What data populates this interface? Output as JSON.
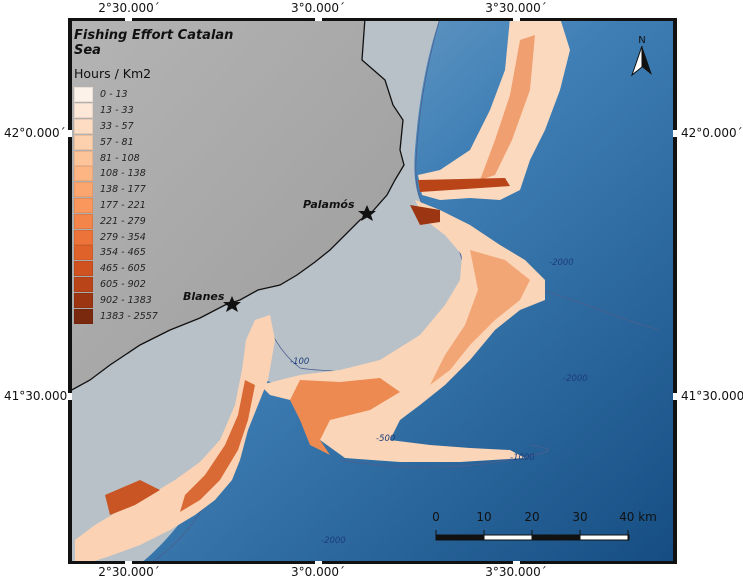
{
  "title": "Fishing Effort  Catalan Sea",
  "legend": {
    "units": "Hours / Km2",
    "classes": [
      {
        "label": "0 - 13",
        "color": "#fdf2ea"
      },
      {
        "label": "13 - 33",
        "color": "#fde8d8"
      },
      {
        "label": "33 - 57",
        "color": "#fddcc3"
      },
      {
        "label": "57 - 81",
        "color": "#fdd0ae"
      },
      {
        "label": "81 - 108",
        "color": "#fdc49a"
      },
      {
        "label": "108 - 138",
        "color": "#fdb584"
      },
      {
        "label": "138 - 177",
        "color": "#fca66f"
      },
      {
        "label": "177 - 221",
        "color": "#f9975d"
      },
      {
        "label": "221 - 279",
        "color": "#f4854a"
      },
      {
        "label": "279 - 354",
        "color": "#ec7339"
      },
      {
        "label": "354 - 465",
        "color": "#e0622b"
      },
      {
        "label": "465 - 605",
        "color": "#d05220"
      },
      {
        "label": "605 - 902",
        "color": "#b94418"
      },
      {
        "label": "902 - 1383",
        "color": "#9c3612"
      },
      {
        "label": "1383 - 2557",
        "color": "#7a290e"
      }
    ]
  },
  "graticule": {
    "top": [
      "2°30.000´",
      "3°0.000´",
      "3°30.000´"
    ],
    "bottom": [
      "2°30.000´",
      "3°0.000´",
      "3°30.000´"
    ],
    "left": [
      "42°0.000´",
      "41°30.000´"
    ],
    "right": [
      "42°0.000´",
      "41°30.000´"
    ]
  },
  "places": [
    {
      "name": "Palamós"
    },
    {
      "name": "Blanes"
    }
  ],
  "contours": [
    "-100",
    "-500",
    "-1000",
    "-2000",
    "-2000",
    "-2000"
  ],
  "scale_bar": {
    "ticks": [
      "0",
      "10",
      "20",
      "30"
    ],
    "last": "40 km"
  },
  "north_label": "N",
  "colors": {
    "land": "#a8a8a8",
    "shelf": "#c2c4c6",
    "deep": "#1d5a8f",
    "coast": "#111111"
  }
}
